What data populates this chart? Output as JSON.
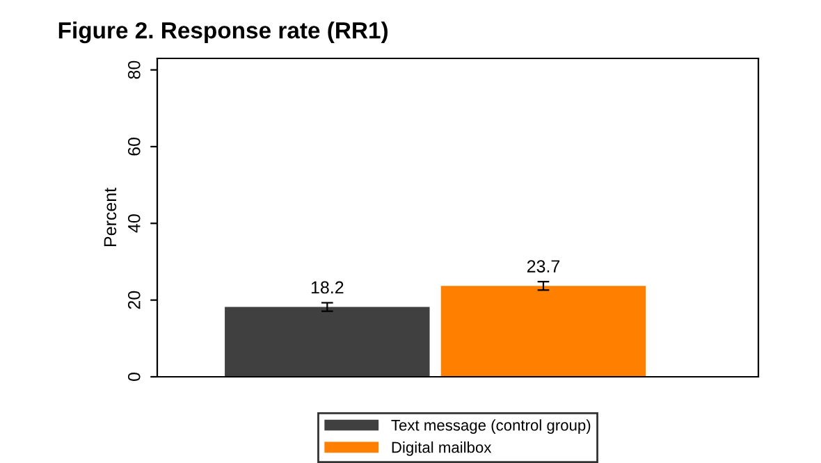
{
  "chart_data": {
    "type": "bar",
    "title": "Figure 2. Response rate (RR1)",
    "ylabel": "Percent",
    "categories": [
      null
    ],
    "series": [
      {
        "name": "Text message (control group)",
        "color": "#404040",
        "values": [
          18.2
        ],
        "errors": [
          1.1
        ]
      },
      {
        "name": "Digital mailbox",
        "color": "#ff8000",
        "values": [
          23.7
        ],
        "errors": [
          1.1
        ]
      }
    ],
    "ylim": [
      0,
      83
    ],
    "yticks": [
      0,
      20,
      40,
      60,
      80
    ],
    "grid": false,
    "legend": "bottom",
    "data_labels": true
  }
}
